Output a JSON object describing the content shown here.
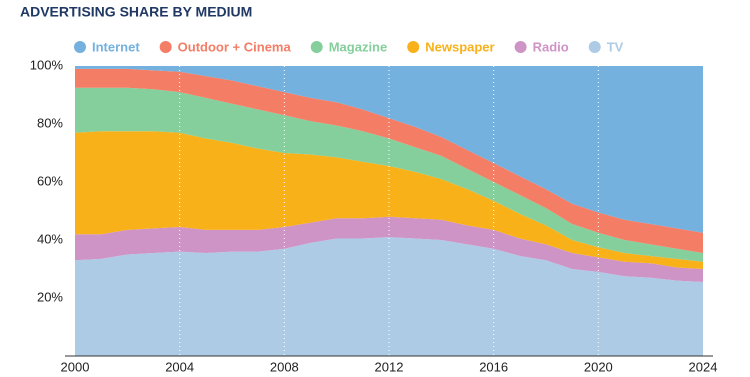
{
  "chart_data": {
    "type": "stacked-area",
    "title": "ADVERTISING SHARE BY MEDIUM",
    "x": [
      2000,
      2001,
      2002,
      2003,
      2004,
      2005,
      2006,
      2007,
      2008,
      2009,
      2010,
      2011,
      2012,
      2013,
      2014,
      2015,
      2016,
      2017,
      2018,
      2019,
      2020,
      2021,
      2022,
      2023,
      2024
    ],
    "series": [
      {
        "name": "Internet",
        "color": "#74b1df",
        "values": [
          1,
          1,
          1,
          1.5,
          2,
          3.5,
          5,
          7,
          9,
          11,
          12.5,
          15,
          18,
          21,
          24.5,
          29,
          33.5,
          38,
          42.5,
          47.5,
          50.5,
          53,
          54.5,
          56,
          57.5
        ]
      },
      {
        "name": "Outdoor + Cinema",
        "color": "#f47d66",
        "values": [
          6.5,
          6.5,
          6.5,
          6.5,
          7,
          7.5,
          8,
          8,
          8,
          8,
          8,
          7.5,
          7,
          7,
          6.5,
          6.5,
          6.5,
          6.5,
          6.5,
          7,
          7,
          7,
          7,
          7,
          7
        ]
      },
      {
        "name": "Magazine",
        "color": "#85cf9d",
        "values": [
          15.5,
          15,
          15,
          14.5,
          14,
          14,
          13.5,
          13.5,
          13,
          11.5,
          11,
          10.5,
          9.5,
          8.5,
          8,
          7,
          6.5,
          6.5,
          6,
          5.5,
          5,
          4.5,
          4,
          3.5,
          3
        ]
      },
      {
        "name": "Newspaper",
        "color": "#f9b11a",
        "values": [
          35,
          35.5,
          34,
          33.5,
          32.5,
          31.5,
          30,
          28,
          25.5,
          23.5,
          21,
          19.5,
          17.5,
          16,
          14,
          12.5,
          10,
          8.5,
          6.5,
          4.5,
          3.5,
          3,
          2.5,
          3,
          2.5
        ]
      },
      {
        "name": "Radio",
        "color": "#cf94c6",
        "values": [
          9,
          8.5,
          8.5,
          8.5,
          8.5,
          8,
          7.5,
          7.5,
          7.5,
          7,
          7,
          7,
          7,
          7,
          7,
          6.5,
          6.5,
          6,
          5.5,
          5.5,
          5,
          5,
          5,
          4.5,
          4.5
        ]
      },
      {
        "name": "TV",
        "color": "#aecbe6",
        "values": [
          33,
          33.5,
          35,
          35.5,
          36,
          35.5,
          36,
          36,
          37,
          39,
          40.5,
          40.5,
          41,
          40.5,
          40,
          38.5,
          37,
          34.5,
          33,
          30,
          29,
          27.5,
          27,
          26,
          25.5
        ]
      }
    ],
    "xlim": [
      2000,
      2024
    ],
    "xticks": [
      2000,
      2004,
      2008,
      2012,
      2016,
      2020,
      2024
    ],
    "ylim": [
      0,
      100
    ],
    "yticks": [
      {
        "value": 20,
        "label": "20%"
      },
      {
        "value": 40,
        "label": "40%"
      },
      {
        "value": 60,
        "label": "60%"
      },
      {
        "value": 80,
        "label": "80%"
      },
      {
        "value": 100,
        "label": "100%"
      }
    ],
    "grid": true,
    "legend": "top"
  }
}
